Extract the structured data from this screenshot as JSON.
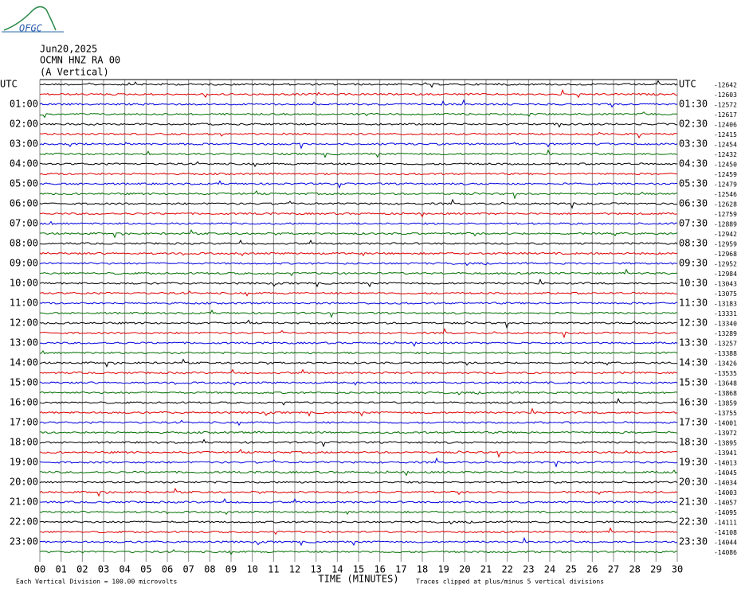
{
  "logo": "OFGC",
  "header": {
    "date": "Jun20,2025",
    "station": "OCMN HNZ RA 00",
    "component": "(A Vertical)"
  },
  "left_labels": [
    "UTC",
    "01:00",
    "02:00",
    "03:00",
    "04:00",
    "05:00",
    "06:00",
    "07:00",
    "08:00",
    "09:00",
    "10:00",
    "11:00",
    "12:00",
    "13:00",
    "14:00",
    "15:00",
    "16:00",
    "17:00",
    "18:00",
    "19:00",
    "20:00",
    "21:00",
    "22:00",
    "23:00"
  ],
  "right_labels": [
    "UTC",
    "01:30",
    "02:30",
    "03:30",
    "04:30",
    "05:30",
    "06:30",
    "07:30",
    "08:30",
    "09:30",
    "10:30",
    "11:30",
    "12:30",
    "13:30",
    "14:30",
    "15:30",
    "16:30",
    "17:30",
    "18:30",
    "19:30",
    "20:30",
    "21:30",
    "22:30",
    "23:30"
  ],
  "offsets": [
    -12642,
    -12603,
    -12572,
    -12617,
    -12406,
    -12415,
    -12454,
    -12432,
    -12450,
    -12459,
    -12479,
    -12546,
    -12628,
    -12759,
    -12889,
    -12942,
    -12959,
    -12968,
    -12952,
    -12984,
    -13043,
    -13075,
    -13183,
    -13331,
    -13340,
    -13289,
    -13257,
    -13388,
    -13426,
    -13535,
    -13648,
    -13868,
    -13859,
    -13755,
    -14001,
    -13972,
    -13895,
    -13941,
    -14013,
    -14045,
    -14034,
    -14003,
    -14057,
    -14095,
    -14111,
    -14108,
    -14044,
    -14086
  ],
  "trace_colors": [
    "#000000",
    "#e00000",
    "#0000e0",
    "#007000"
  ],
  "x_axis": {
    "title": "TIME (MINUTES)",
    "ticks": [
      "00",
      "01",
      "02",
      "03",
      "04",
      "05",
      "06",
      "07",
      "08",
      "09",
      "10",
      "11",
      "12",
      "13",
      "14",
      "15",
      "16",
      "17",
      "18",
      "19",
      "20",
      "21",
      "22",
      "23",
      "24",
      "25",
      "26",
      "27",
      "28",
      "29",
      "30"
    ]
  },
  "footer": {
    "scale": "Each Vertical Division =  100.00 microvolts",
    "clip": "Traces clipped at plus/minus 5 vertical divisions"
  }
}
